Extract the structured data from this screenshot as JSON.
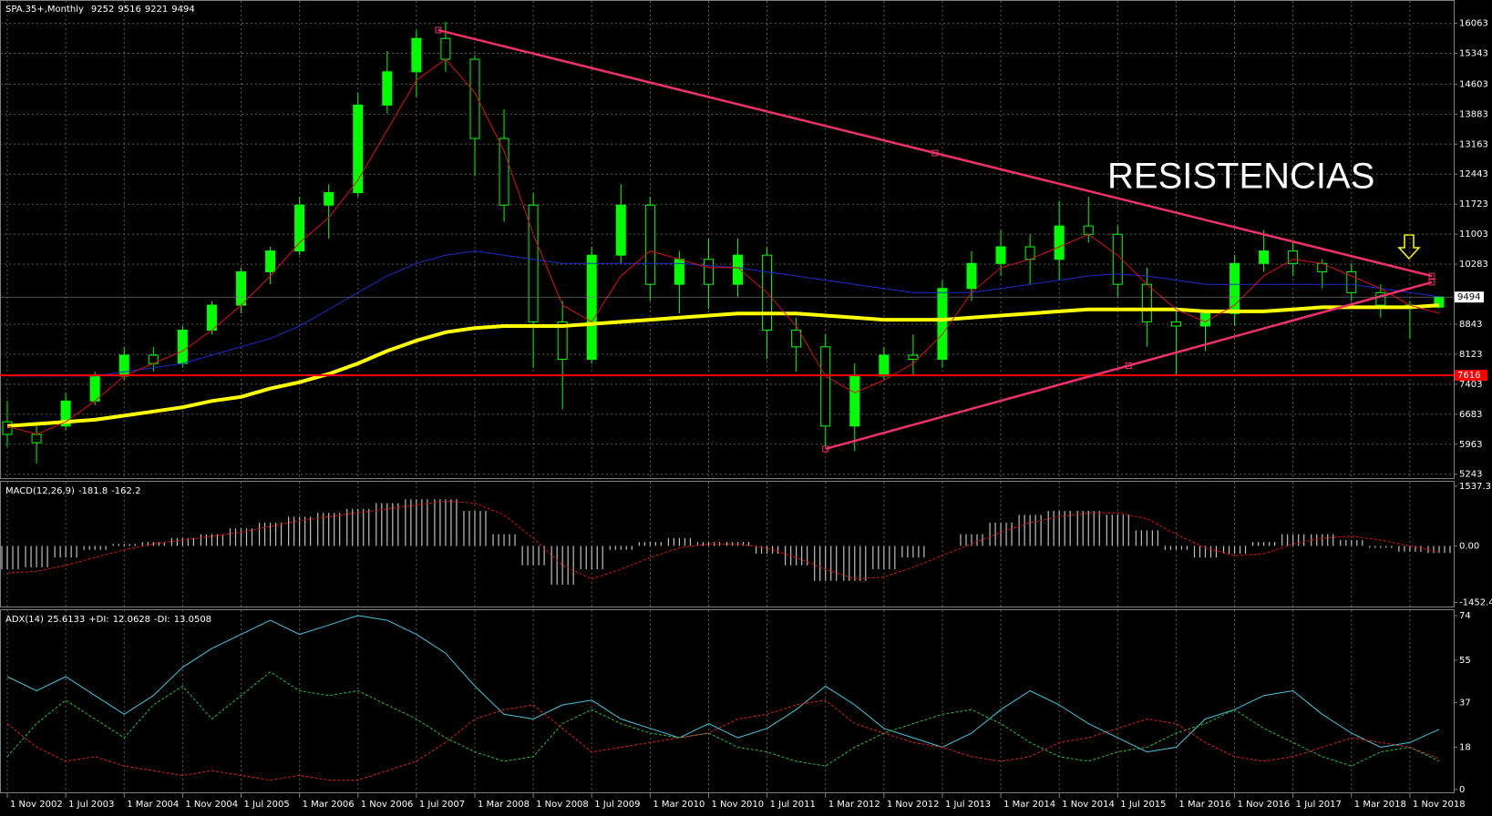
{
  "chart_data": [
    {
      "type": "candlestick",
      "title": "SPA.35+,Monthly",
      "x": [
        "2002-11",
        "2003-03",
        "2003-07",
        "2003-11",
        "2004-03",
        "2004-07",
        "2004-11",
        "2005-03",
        "2005-07",
        "2005-11",
        "2006-03",
        "2006-07",
        "2006-11",
        "2007-03",
        "2007-07",
        "2007-11",
        "2008-03",
        "2008-07",
        "2008-11",
        "2009-03",
        "2009-07",
        "2009-11",
        "2010-03",
        "2010-07",
        "2010-11",
        "2011-03",
        "2011-07",
        "2011-11",
        "2012-03",
        "2012-07",
        "2012-11",
        "2013-03",
        "2013-07",
        "2013-11",
        "2014-03",
        "2014-07",
        "2014-11",
        "2015-03",
        "2015-07",
        "2015-11",
        "2016-03",
        "2016-07",
        "2016-11",
        "2017-03",
        "2017-07",
        "2017-11",
        "2018-03",
        "2018-07",
        "2018-11",
        "2019-03"
      ],
      "open": [
        6500,
        6200,
        6400,
        7000,
        7600,
        8100,
        7900,
        8700,
        9300,
        10100,
        10600,
        11700,
        12000,
        14100,
        14900,
        15700,
        15200,
        13300,
        11700,
        8900,
        8000,
        10500,
        11700,
        9800,
        10400,
        9800,
        10500,
        8700,
        8300,
        6400,
        7600,
        8100,
        8000,
        9700,
        10300,
        10700,
        10400,
        11200,
        11000,
        9800,
        8900,
        8800,
        9100,
        10300,
        10600,
        10300,
        10100,
        9600,
        9300,
        9252
      ],
      "high": [
        7000,
        6400,
        7200,
        7700,
        8300,
        8300,
        8800,
        9400,
        10200,
        10700,
        11900,
        12200,
        14400,
        15400,
        15900,
        16100,
        15300,
        14000,
        12000,
        9400,
        10700,
        12200,
        11900,
        10600,
        10900,
        10900,
        10700,
        9000,
        8600,
        7900,
        8300,
        8600,
        9900,
        10600,
        11100,
        11000,
        11800,
        11900,
        11200,
        10200,
        9200,
        9200,
        10500,
        11100,
        10800,
        10400,
        10300,
        9800,
        9400,
        9516
      ],
      "low": [
        5900,
        5500,
        6300,
        6900,
        7500,
        7700,
        7800,
        8600,
        9100,
        9800,
        10500,
        10900,
        11900,
        13900,
        14300,
        14900,
        12400,
        11300,
        7800,
        6800,
        7900,
        10300,
        9400,
        9100,
        9200,
        9500,
        8000,
        7700,
        5900,
        5800,
        7500,
        7600,
        7800,
        9400,
        10000,
        9800,
        9900,
        10800,
        9500,
        8300,
        7600,
        8200,
        8800,
        10100,
        10000,
        9700,
        9400,
        9000,
        8500,
        9221
      ],
      "close": [
        6200,
        6000,
        7000,
        7600,
        8100,
        7900,
        8700,
        9300,
        10100,
        10600,
        11700,
        12000,
        14100,
        14900,
        15700,
        15200,
        13300,
        11700,
        8900,
        8000,
        10500,
        11700,
        9800,
        10400,
        9800,
        10500,
        8700,
        8300,
        6400,
        7600,
        8100,
        8000,
        9700,
        10300,
        10700,
        10400,
        11200,
        11000,
        9800,
        8900,
        8800,
        9100,
        10300,
        10600,
        10300,
        10100,
        9600,
        9300,
        9250,
        9494
      ],
      "up_color": "#00ff00",
      "down_color": "#000000",
      "series": [
        {
          "color": "#ffff00",
          "values": [
            6400,
            6450,
            6500,
            6550,
            6650,
            6750,
            6850,
            7000,
            7100,
            7300,
            7450,
            7650,
            7900,
            8200,
            8450,
            8650,
            8750,
            8800,
            8800,
            8800,
            8850,
            8900,
            8950,
            9000,
            9050,
            9100,
            9100,
            9100,
            9050,
            9000,
            8950,
            8950,
            8950,
            9000,
            9050,
            9100,
            9150,
            9200,
            9200,
            9200,
            9200,
            9150,
            9150,
            9150,
            9200,
            9250,
            9250,
            9250,
            9250,
            9300
          ]
        },
        {
          "color": "#1c2ccc",
          "values": [
            7600,
            7600,
            7600,
            7600,
            7700,
            7800,
            7900,
            8100,
            8300,
            8500,
            8800,
            9200,
            9600,
            10000,
            10300,
            10500,
            10600,
            10500,
            10400,
            10300,
            10300,
            10300,
            10300,
            10300,
            10250,
            10200,
            10100,
            10000,
            9900,
            9800,
            9700,
            9600,
            9600,
            9600,
            9700,
            9800,
            9900,
            10000,
            10050,
            10000,
            9900,
            9800,
            9800,
            9800,
            9800,
            9800,
            9800,
            9700,
            9600,
            9500
          ]
        },
        {
          "color": "#e01010",
          "values": [
            6400,
            6200,
            6500,
            7000,
            7600,
            7900,
            8200,
            8700,
            9300,
            10000,
            10800,
            11400,
            12300,
            13500,
            14700,
            15200,
            14400,
            13000,
            11000,
            9300,
            8900,
            10000,
            10600,
            10400,
            10200,
            10200,
            9600,
            8800,
            7600,
            7200,
            7500,
            7900,
            8600,
            9600,
            10200,
            10400,
            10700,
            11000,
            10500,
            9800,
            9200,
            8900,
            9300,
            10000,
            10400,
            10300,
            10000,
            9700,
            9300,
            9100
          ]
        }
      ],
      "hline": {
        "value": 7616,
        "color": "#ff0000"
      },
      "trendlines": [
        {
          "color": "#f0306a",
          "from": [
            "2007-10",
            15900
          ],
          "to": [
            "2019-02",
            10000
          ]
        },
        {
          "color": "#f0306a",
          "from": [
            "2012-03",
            5850
          ],
          "to": [
            "2019-02",
            9850
          ]
        }
      ],
      "annotation": {
        "text": "RESISTENCIAS",
        "color": "#ff0000"
      },
      "xlim": [
        "2002-10",
        "2019-05"
      ],
      "xticks": [
        {
          "value": "2002-11",
          "label": "1 Nov 2002"
        },
        {
          "value": "2003-07",
          "label": "1 Jul 2003"
        },
        {
          "value": "2004-03",
          "label": "1 Mar 2004"
        },
        {
          "value": "2004-11",
          "label": "1 Nov 2004"
        },
        {
          "value": "2005-07",
          "label": "1 Jul 2005"
        },
        {
          "value": "2006-03",
          "label": "1 Mar 2006"
        },
        {
          "value": "2006-11",
          "label": "1 Nov 2006"
        },
        {
          "value": "2007-07",
          "label": "1 Jul 2007"
        },
        {
          "value": "2008-03",
          "label": "1 Mar 2008"
        },
        {
          "value": "2008-11",
          "label": "1 Nov 2008"
        },
        {
          "value": "2009-07",
          "label": "1 Jul 2009"
        },
        {
          "value": "2010-03",
          "label": "1 Mar 2010"
        },
        {
          "value": "2010-11",
          "label": "1 Nov 2010"
        },
        {
          "value": "2011-07",
          "label": "1 Jul 2011"
        },
        {
          "value": "2012-03",
          "label": "1 Mar 2012"
        },
        {
          "value": "2012-11",
          "label": "1 Nov 2012"
        },
        {
          "value": "2013-07",
          "label": "1 Jul 2013"
        },
        {
          "value": "2014-03",
          "label": "1 Mar 2014"
        },
        {
          "value": "2014-11",
          "label": "1 Nov 2014"
        },
        {
          "value": "2015-07",
          "label": "1 Jul 2015"
        },
        {
          "value": "2016-03",
          "label": "1 Mar 2016"
        },
        {
          "value": "2016-11",
          "label": "1 Nov 2016"
        },
        {
          "value": "2017-07",
          "label": "1 Jul 2017"
        },
        {
          "value": "2018-03",
          "label": "1 Mar 2018"
        },
        {
          "value": "2018-11",
          "label": "1 Nov 2018"
        }
      ],
      "ylim": [
        5150,
        16600
      ],
      "yticks": [
        16063,
        15343,
        14603,
        13883,
        13163,
        12443,
        11723,
        11003,
        10283,
        8843,
        8123,
        7403,
        6683,
        5963,
        5243
      ],
      "grid": true
    },
    {
      "type": "macd",
      "title": "MACD(12,26,9)",
      "series": [
        {
          "color": "#c0c0c0",
          "values": [
            -600,
            -550,
            -300,
            -100,
            50,
            100,
            200,
            300,
            450,
            600,
            750,
            850,
            950,
            1100,
            1200,
            1200,
            900,
            300,
            -500,
            -1000,
            -600,
            -100,
            100,
            200,
            100,
            100,
            -200,
            -500,
            -900,
            -900,
            -600,
            -300,
            0,
            300,
            600,
            800,
            900,
            900,
            800,
            400,
            -100,
            -300,
            -200,
            100,
            300,
            300,
            150,
            -50,
            -150,
            -181.8
          ]
        },
        {
          "color": "#e01010",
          "values": [
            -700,
            -650,
            -500,
            -300,
            -100,
            50,
            150,
            250,
            350,
            500,
            650,
            750,
            850,
            950,
            1050,
            1150,
            1100,
            800,
            200,
            -500,
            -850,
            -600,
            -300,
            -50,
            50,
            50,
            -50,
            -300,
            -600,
            -850,
            -800,
            -550,
            -250,
            50,
            350,
            600,
            750,
            850,
            850,
            700,
            300,
            -50,
            -250,
            -200,
            50,
            200,
            250,
            150,
            0,
            -162.2
          ]
        }
      ],
      "ylim": [
        -1560,
        1650
      ],
      "yticks": [
        1537.3,
        {
          "value": 0,
          "label": "0.00"
        },
        -1452.4
      ]
    },
    {
      "type": "line",
      "title": "ADX(14)",
      "series": [
        {
          "color": "#40c8e0",
          "values": [
            48,
            42,
            48,
            40,
            32,
            40,
            52,
            60,
            66,
            72,
            66,
            70,
            74,
            72,
            66,
            58,
            44,
            32,
            30,
            36,
            38,
            30,
            26,
            22,
            28,
            22,
            26,
            34,
            44,
            36,
            26,
            22,
            18,
            24,
            34,
            42,
            36,
            28,
            22,
            16,
            18,
            30,
            34,
            40,
            42,
            32,
            24,
            18,
            20,
            25.6133
          ]
        },
        {
          "name": "+DI:",
          "color": "#22c040",
          "values": [
            14,
            28,
            38,
            30,
            22,
            36,
            44,
            30,
            40,
            50,
            42,
            40,
            42,
            36,
            30,
            22,
            16,
            12,
            14,
            28,
            34,
            28,
            24,
            22,
            24,
            18,
            16,
            12,
            10,
            18,
            24,
            28,
            32,
            34,
            28,
            20,
            14,
            12,
            16,
            18,
            24,
            28,
            34,
            26,
            20,
            14,
            10,
            16,
            18,
            12.0628
          ]
        },
        {
          "name": "-DI:",
          "color": "#e02020",
          "values": [
            28,
            18,
            12,
            14,
            10,
            8,
            6,
            8,
            6,
            4,
            6,
            4,
            4,
            8,
            12,
            20,
            30,
            34,
            36,
            26,
            16,
            18,
            20,
            22,
            24,
            30,
            32,
            36,
            38,
            28,
            24,
            20,
            18,
            14,
            12,
            14,
            20,
            22,
            26,
            30,
            28,
            20,
            14,
            12,
            14,
            18,
            22,
            20,
            18,
            13.0508
          ]
        }
      ],
      "ylim": [
        -1.2,
        76.3
      ],
      "yticks": [
        74,
        55,
        37,
        18,
        0
      ]
    }
  ]
}
